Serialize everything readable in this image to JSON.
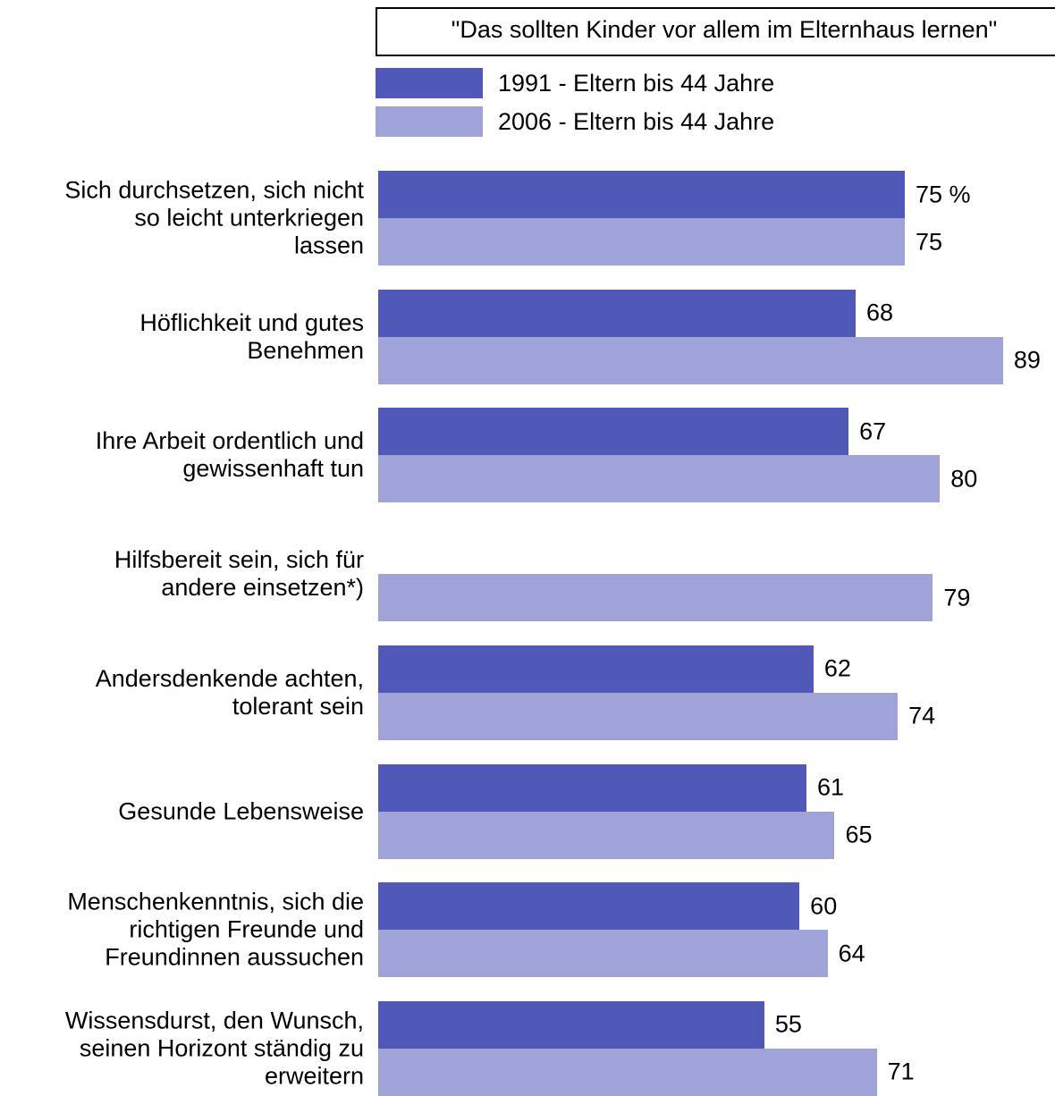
{
  "chart_data": {
    "type": "bar",
    "orientation": "horizontal",
    "title": "\"Das sollten Kinder vor allem im Elternhaus lernen\"",
    "categories": [
      "Sich durchsetzen, sich nicht\nso leicht unterkriegen\nlassen",
      "Höflichkeit und gutes\nBenehmen",
      "Ihre Arbeit ordentlich und\ngewissenhaft tun",
      "Hilfsbereit sein, sich für\nandere einsetzen*)",
      "Andersdenkende achten,\ntolerant sein",
      "Gesunde Lebensweise",
      "Menschenkenntnis, sich die\nrichtigen Freunde und\nFreundinnen aussuchen",
      "Wissensdurst, den Wunsch,\nseinen Horizont ständig zu\nerweitern"
    ],
    "series": [
      {
        "name": "1991 - Eltern bis 44 Jahre",
        "color": "#5059b8",
        "values": [
          75,
          68,
          67,
          null,
          62,
          61,
          60,
          55
        ],
        "value_labels": [
          "75 %",
          "68",
          "67",
          null,
          "62",
          "61",
          "60",
          "55"
        ]
      },
      {
        "name": "2006 - Eltern bis 44 Jahre",
        "color": "#9fa3d7",
        "values": [
          75,
          89,
          80,
          79,
          74,
          65,
          64,
          71
        ]
      }
    ]
  }
}
